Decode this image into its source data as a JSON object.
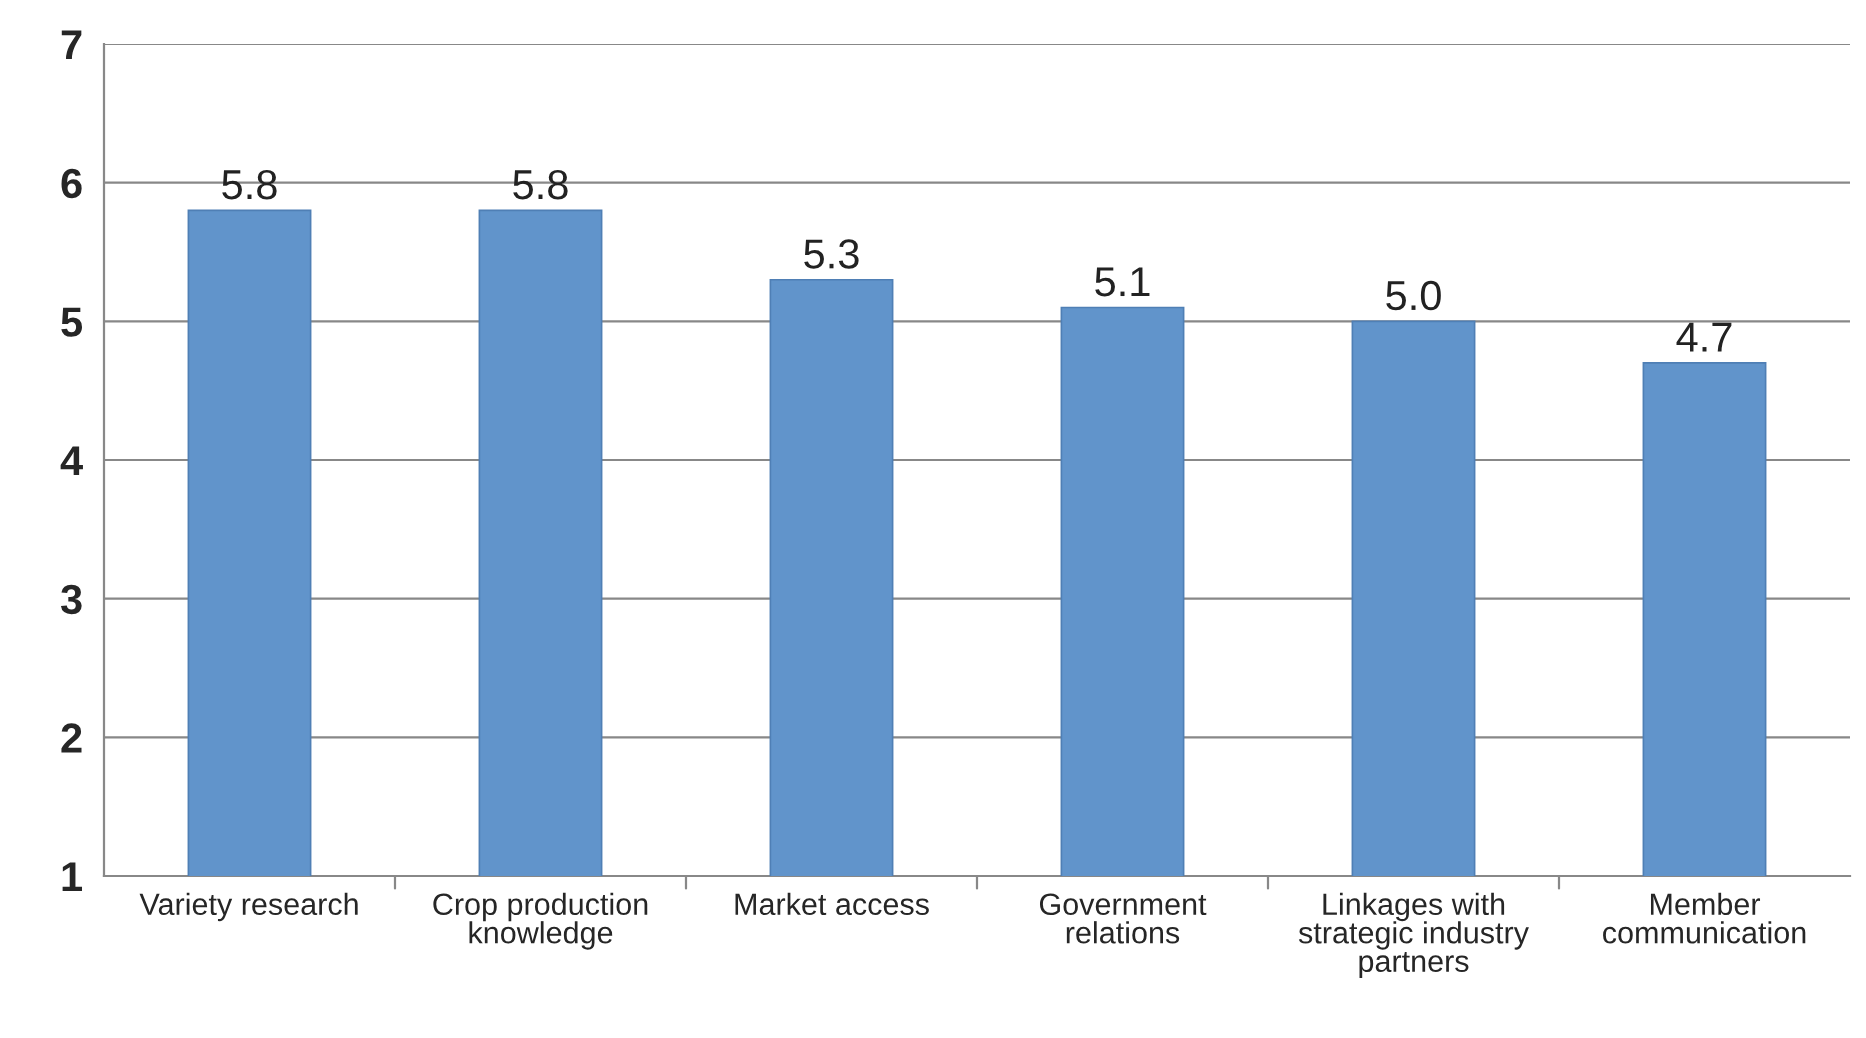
{
  "chart_data": {
    "type": "bar",
    "categories": [
      "Variety research",
      "Crop production\nknowledge",
      "Market access",
      "Government\nrelations",
      "Linkages with\nstrategic industry\npartners",
      "Member\ncommunication"
    ],
    "values": [
      5.8,
      5.8,
      5.3,
      5.1,
      5.0,
      4.7
    ],
    "value_labels": [
      "5.8",
      "5.8",
      "5.3",
      "5.1",
      "5.0",
      "4.7"
    ],
    "color": "#6194cb",
    "ylim": [
      1,
      7
    ],
    "yticks": [
      1,
      2,
      3,
      4,
      5,
      6,
      7
    ],
    "grid": "y",
    "legend": false
  }
}
